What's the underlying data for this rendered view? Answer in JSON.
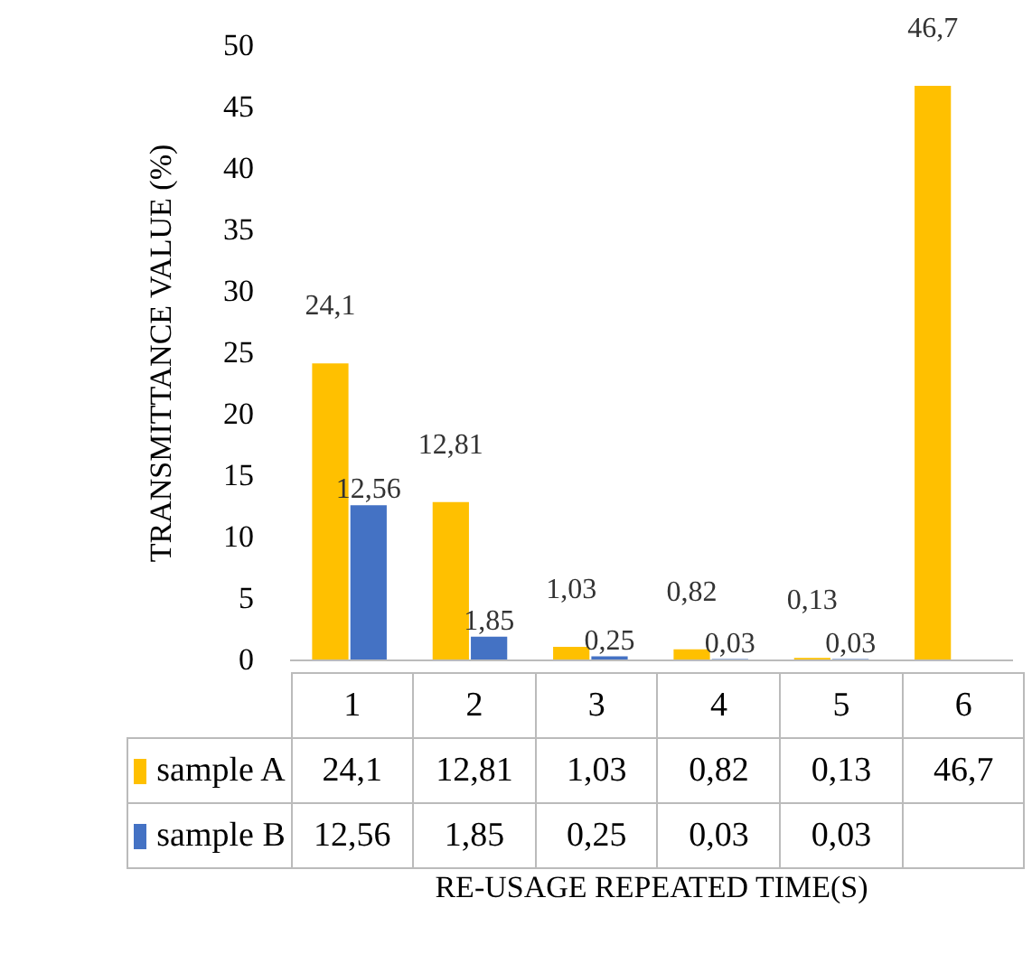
{
  "chart_data": {
    "type": "bar",
    "xlabel": "RE-USAGE REPEATED TIME(S)",
    "ylabel": "TRANSMITTANCE  VALUE  (%)",
    "categories": [
      "1",
      "2",
      "3",
      "4",
      "5",
      "6"
    ],
    "series": [
      {
        "name": "sample A",
        "color": "#ffc000",
        "values": [
          24.1,
          12.81,
          1.03,
          0.82,
          0.13,
          46.7
        ],
        "value_labels": [
          "24,1",
          "12,81",
          "1,03",
          "0,82",
          "0,13",
          "46,7"
        ]
      },
      {
        "name": "sample B",
        "color": "#4472c4",
        "values": [
          12.56,
          1.85,
          0.25,
          0.03,
          0.03,
          null
        ],
        "value_labels": [
          "12,56",
          "1,85",
          "0,25",
          "0,03",
          "0,03",
          null
        ]
      }
    ],
    "ylim": [
      0,
      50
    ],
    "yticks": [
      0,
      5,
      10,
      15,
      20,
      25,
      30,
      35,
      40,
      45,
      50
    ],
    "grid": false,
    "legend": "bottom"
  }
}
